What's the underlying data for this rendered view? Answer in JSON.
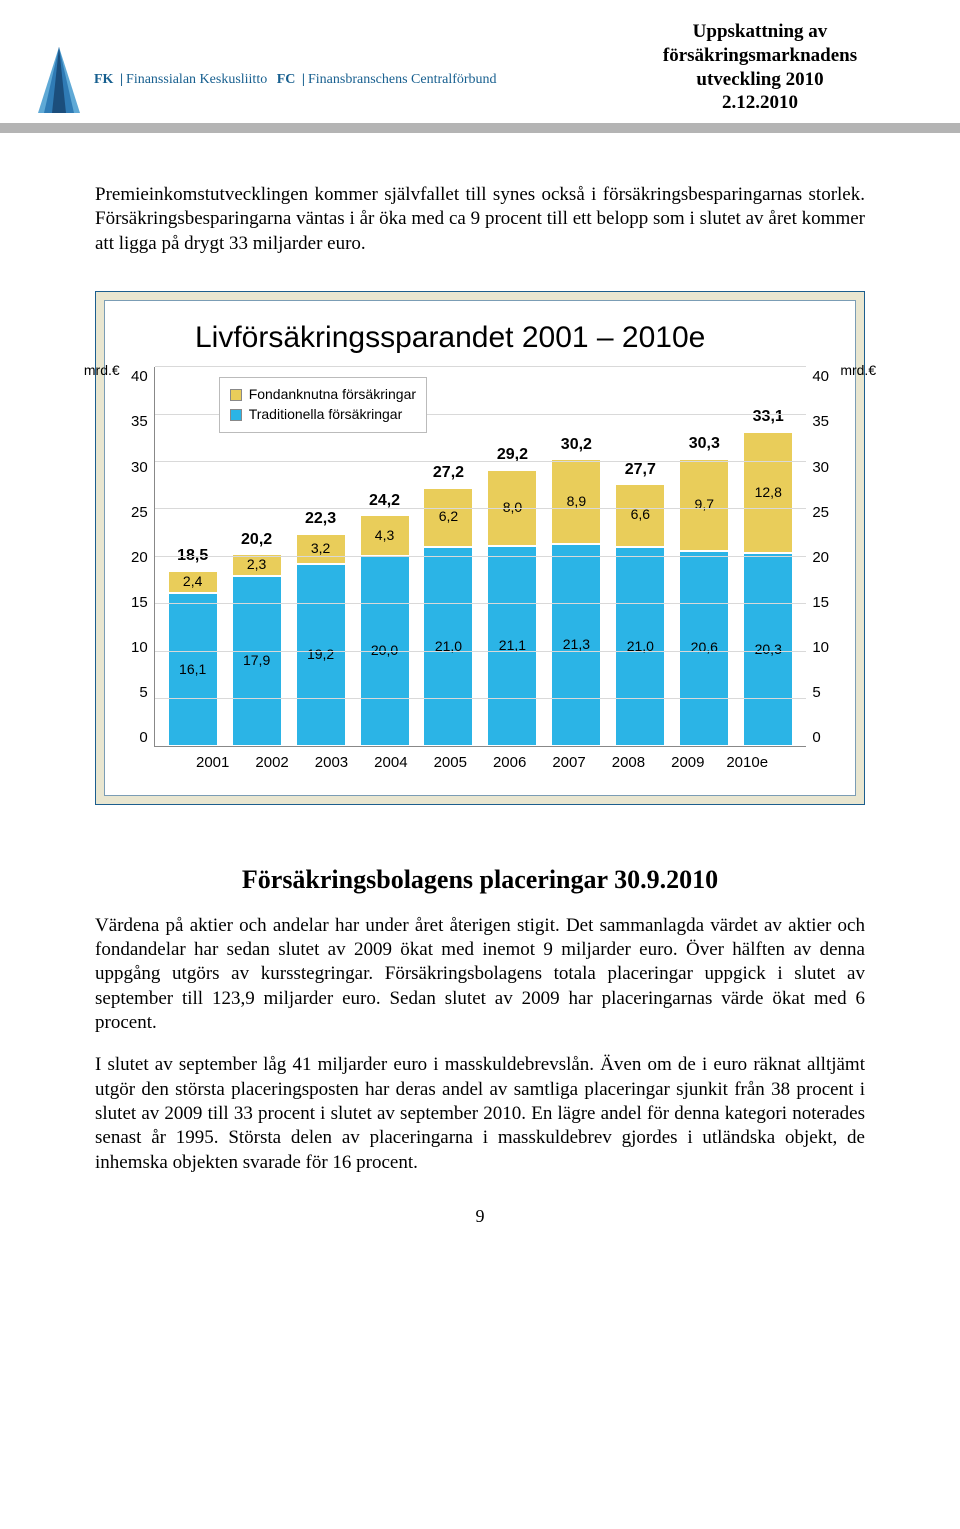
{
  "header": {
    "org_fk": "FK",
    "org_fi": "Finanssialan Keskusliitto",
    "org_fc": "FC",
    "org_sv": "Finansbranschens Centralförbund",
    "title_l1": "Uppskattning av",
    "title_l2": "försäkringsmarknadens",
    "title_l3": "utveckling 2010",
    "title_l4": "2.12.2010",
    "logo_colors": {
      "dark": "#1b4e7c",
      "mid": "#2f7bb5",
      "light": "#5fa9d6"
    }
  },
  "body": {
    "p1": "Premieinkomstutvecklingen kommer självfallet till synes också i försäkringsbesparingarnas storlek. Försäkringsbesparingarna väntas i år öka med ca 9 procent till ett belopp som i slutet av året kommer att ligga på drygt 33 miljarder euro.",
    "h2": "Försäkringsbolagens placeringar 30.9.2010",
    "p2": "Värdena på aktier och andelar har under året återigen stigit. Det sammanlagda värdet av aktier och fondandelar har sedan slutet av 2009 ökat med inemot 9 miljarder euro. Över hälften av denna uppgång utgörs av kursstegringar. Försäkringsbolagens totala placeringar uppgick i slutet av september till 123,9 miljarder euro. Sedan slutet av 2009 har placeringarnas värde ökat med 6 procent.",
    "p3": "I slutet av september låg 41 miljarder euro i masskuldebrevslån. Även om de i euro räknat alltjämt utgör den största placeringsposten har deras andel av samtliga placeringar sjunkit från 38 procent i slutet av 2009 till 33 procent i slutet av september 2010. En lägre andel för denna kategori noterades senast år 1995. Största delen av placeringarna i masskuldebrev gjordes i utländska objekt, de inhemska objekten svarade för 16 procent.",
    "page_num": "9"
  },
  "chart": {
    "title": "Livförsäkringssparandet 2001 – 2010e",
    "y_unit": "mrd.€",
    "y_max": 40,
    "y_ticks": [
      40,
      35,
      30,
      25,
      20,
      15,
      10,
      5,
      0
    ],
    "legend": [
      {
        "label": "Fondanknutna försäkringar",
        "color": "#e9cd5a"
      },
      {
        "label": "Traditionella försäkringar",
        "color": "#2bb4e6"
      }
    ],
    "colors": {
      "fond": "#e9cd5a",
      "trad": "#2bb4e6",
      "grid": "#d9d9d9",
      "axis": "#888888",
      "box_outer": "#1c5e8e",
      "box_bg": "#e9e6d0"
    },
    "categories": [
      "2001",
      "2002",
      "2003",
      "2004",
      "2005",
      "2006",
      "2007",
      "2008",
      "2009",
      "2010e"
    ],
    "series": [
      {
        "total": "18,5",
        "fond": 2.4,
        "fond_label": "2,4",
        "trad": 16.1,
        "trad_label": "16,1"
      },
      {
        "total": "20,2",
        "fond": 2.3,
        "fond_label": "2,3",
        "trad": 17.9,
        "trad_label": "17,9"
      },
      {
        "total": "22,3",
        "fond": 3.2,
        "fond_label": "3,2",
        "trad": 19.2,
        "trad_label": "19,2"
      },
      {
        "total": "24,2",
        "fond": 4.3,
        "fond_label": "4,3",
        "trad": 20.0,
        "trad_label": "20,0"
      },
      {
        "total": "27,2",
        "fond": 6.2,
        "fond_label": "6,2",
        "trad": 21.0,
        "trad_label": "21,0"
      },
      {
        "total": "29,2",
        "fond": 8.0,
        "fond_label": "8,0",
        "trad": 21.1,
        "trad_label": "21,1"
      },
      {
        "total": "30,2",
        "fond": 8.9,
        "fond_label": "8,9",
        "trad": 21.3,
        "trad_label": "21,3"
      },
      {
        "total": "27,7",
        "fond": 6.6,
        "fond_label": "6,6",
        "trad": 21.0,
        "trad_label": "21,0"
      },
      {
        "total": "30,3",
        "fond": 9.7,
        "fond_label": "9,7",
        "trad": 20.6,
        "trad_label": "20,6"
      },
      {
        "total": "33,1",
        "fond": 12.8,
        "fond_label": "12,8",
        "trad": 20.3,
        "trad_label": "20,3"
      }
    ]
  }
}
